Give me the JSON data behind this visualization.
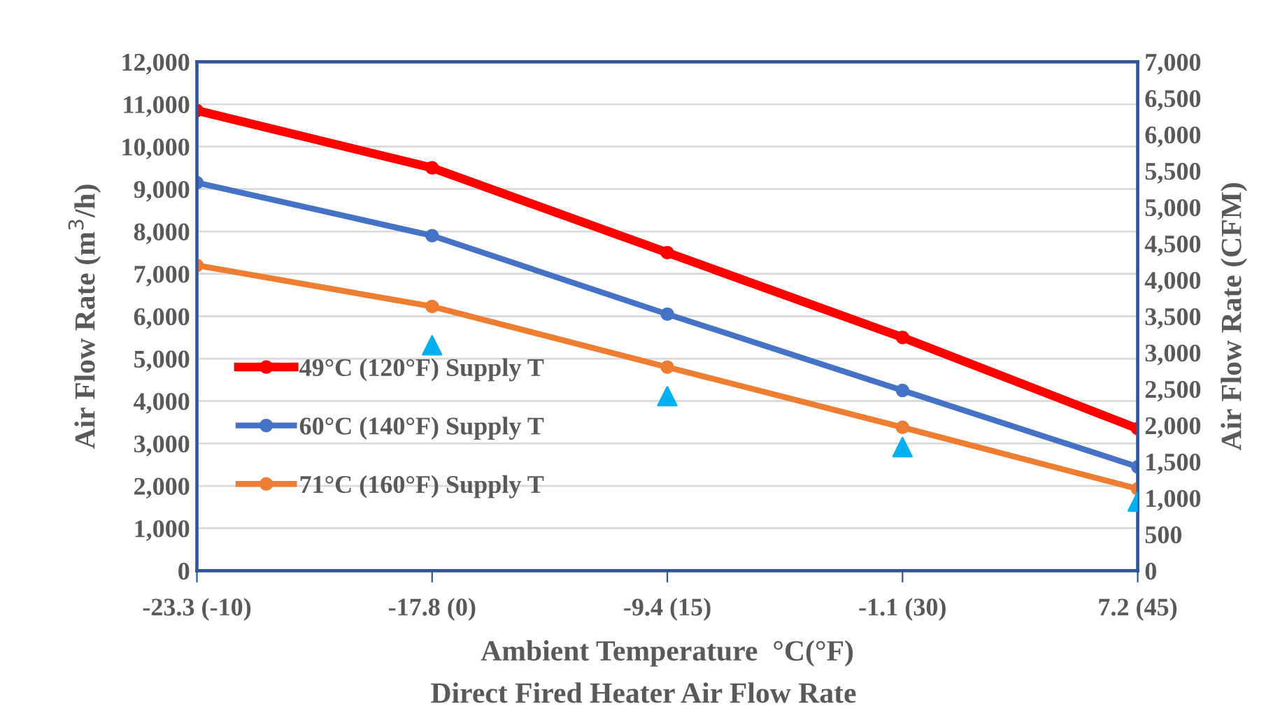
{
  "chart_data": {
    "type": "line",
    "title": "Direct Fired Heater Air Flow Rate",
    "xlabel": "Ambient Temperature  °C(°F)",
    "ylabel": "Air Flow Rate (m$^{3}$/h)",
    "y2label": "Air Flow Rate (CFM)",
    "categories": [
      "-23.3 (-10)",
      "-17.8 (0)",
      "-9.4 (15)",
      "-1.1 (30)",
      "7.2 (45)"
    ],
    "series": [
      {
        "name": "49°C (120°F) Supply T",
        "color": "#ff0000",
        "values": [
          10850,
          9500,
          7500,
          5500,
          3350
        ]
      },
      {
        "name": "60°C (140°F) Supply T",
        "color": "#4472c4",
        "values": [
          9150,
          7900,
          6050,
          4250,
          2450
        ]
      },
      {
        "name": "71°C (160°F) Supply T",
        "color": "#ed7d31",
        "values": [
          7200,
          6230,
          4800,
          3380,
          1930
        ]
      },
      {
        "type": "scatter",
        "axis": "y2",
        "color": "#00b0f0",
        "marker": "triangle",
        "values": [
          null,
          3100,
          2400,
          1700,
          950
        ]
      }
    ],
    "ylim": [
      0,
      12000
    ],
    "yticks": [
      0,
      {
        "value": 1000,
        "label": "1,000"
      },
      {
        "value": 2000,
        "label": "2,000"
      },
      {
        "value": 3000,
        "label": "3,000"
      },
      {
        "value": 4000,
        "label": "4,000"
      },
      {
        "value": 5000,
        "label": "5,000"
      },
      {
        "value": 6000,
        "label": "6,000"
      },
      {
        "value": 7000,
        "label": "7,000"
      },
      {
        "value": 8000,
        "label": "8,000"
      },
      {
        "value": 9000,
        "label": "9,000"
      },
      {
        "value": 10000,
        "label": "10,000"
      },
      {
        "value": 11000,
        "label": "11,000"
      },
      {
        "value": 12000,
        "label": "12,000"
      }
    ],
    "y2lim": [
      0,
      7000
    ],
    "y2ticks": [
      0,
      500,
      {
        "value": 1000,
        "label": "1,000"
      },
      {
        "value": 1500,
        "label": "1,500"
      },
      {
        "value": 2000,
        "label": "2,000"
      },
      {
        "value": 2500,
        "label": "2,500"
      },
      {
        "value": 3000,
        "label": "3,000"
      },
      {
        "value": 3500,
        "label": "3,500"
      },
      {
        "value": 4000,
        "label": "4,000"
      },
      {
        "value": 4500,
        "label": "4,500"
      },
      {
        "value": 5000,
        "label": "5,000"
      },
      {
        "value": 5500,
        "label": "5,500"
      },
      {
        "value": 6000,
        "label": "6,000"
      },
      {
        "value": 6500,
        "label": "6,500"
      },
      {
        "value": 7000,
        "label": "7,000"
      }
    ],
    "grid": "y",
    "legend": "left",
    "marker": "circle"
  }
}
